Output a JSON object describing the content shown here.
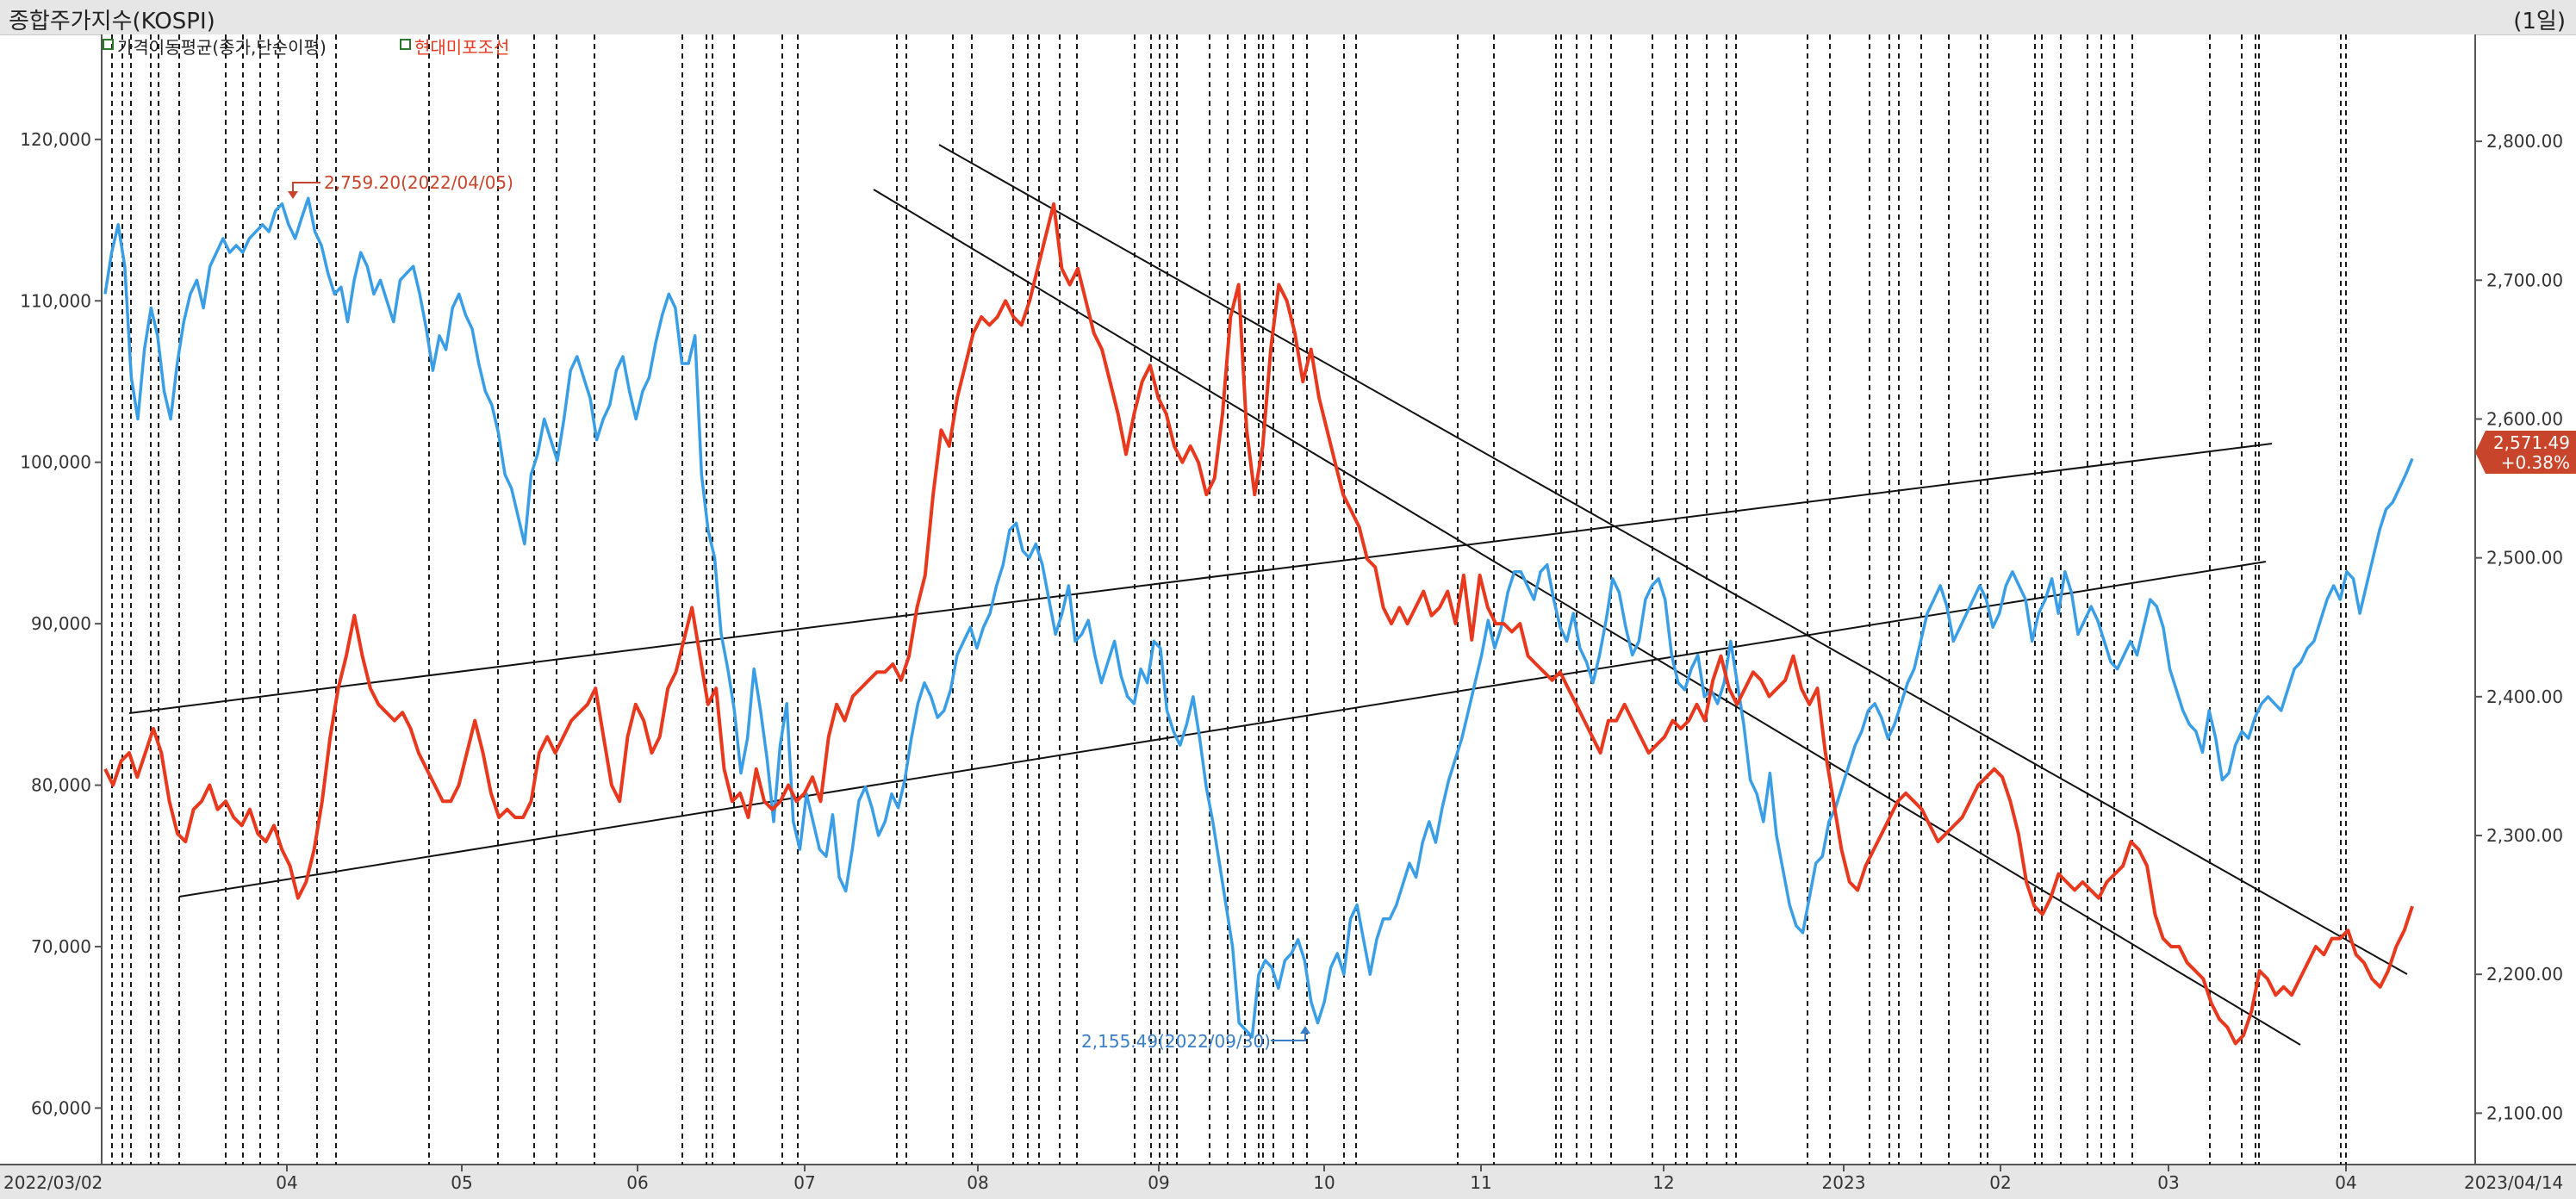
{
  "window": {
    "title": "종합주가지수(KOSPI)",
    "period": "(1일)"
  },
  "colors": {
    "primary": "#3a9ee6",
    "secondary": "#e8381e",
    "accent": "#c8442a",
    "grid": "#000000"
  },
  "chart_data": {
    "type": "line",
    "legend": [
      {
        "label": "가격이동평균(종가,단순이평)",
        "color": "#222222"
      },
      {
        "label": "현대미포조선",
        "color": "#e8381e"
      }
    ],
    "x_labels": [
      "2022/03/02",
      "04",
      "05",
      "06",
      "07",
      "08",
      "09",
      "10",
      "11",
      "12",
      "2023",
      "02",
      "03",
      "04",
      "2023/04/14"
    ],
    "left_axis": {
      "ticks": [
        "120,000",
        "110,000",
        "100,000",
        "90,000",
        "80,000",
        "70,000",
        "60,000"
      ],
      "range": [
        56500,
        126500
      ]
    },
    "right_axis": {
      "ticks": [
        "2,800.00",
        "2,700.00",
        "2,600.00",
        "2,500.00",
        "2,400.00",
        "2,300.00",
        "2,200.00",
        "2,100.00"
      ],
      "range": [
        2063,
        2877
      ]
    },
    "current": {
      "value": "2,571.49",
      "change": "+0.38%"
    },
    "annotations": {
      "high": "2,759.20(2022/04/05)",
      "low": "2,155.49(2022/09/30)"
    },
    "series": [
      {
        "name": "종합주가지수(KOSPI)",
        "axis": "right",
        "values": [
          2690,
          2720,
          2740,
          2710,
          2630,
          2600,
          2650,
          2680,
          2660,
          2620,
          2600,
          2640,
          2670,
          2690,
          2700,
          2680,
          2710,
          2720,
          2730,
          2720,
          2725,
          2720,
          2730,
          2735,
          2740,
          2735,
          2750,
          2755,
          2740,
          2730,
          2745,
          2759,
          2735,
          2725,
          2705,
          2690,
          2695,
          2670,
          2700,
          2720,
          2710,
          2690,
          2700,
          2685,
          2670,
          2700,
          2705,
          2710,
          2690,
          2665,
          2635,
          2660,
          2650,
          2680,
          2690,
          2675,
          2665,
          2640,
          2620,
          2610,
          2590,
          2560,
          2550,
          2530,
          2510,
          2560,
          2575,
          2600,
          2585,
          2570,
          2600,
          2635,
          2645,
          2630,
          2615,
          2585,
          2600,
          2610,
          2635,
          2645,
          2620,
          2600,
          2620,
          2630,
          2655,
          2675,
          2690,
          2680,
          2640,
          2640,
          2660,
          2560,
          2520,
          2500,
          2445,
          2420,
          2390,
          2345,
          2370,
          2420,
          2390,
          2355,
          2310,
          2365,
          2395,
          2310,
          2290,
          2330,
          2310,
          2290,
          2285,
          2315,
          2270,
          2260,
          2290,
          2325,
          2335,
          2320,
          2300,
          2310,
          2330,
          2320,
          2340,
          2370,
          2395,
          2410,
          2400,
          2385,
          2390,
          2405,
          2430,
          2440,
          2450,
          2435,
          2450,
          2460,
          2480,
          2495,
          2520,
          2525,
          2505,
          2500,
          2510,
          2495,
          2470,
          2445,
          2460,
          2480,
          2440,
          2445,
          2455,
          2430,
          2410,
          2425,
          2440,
          2415,
          2400,
          2395,
          2420,
          2410,
          2440,
          2435,
          2390,
          2375,
          2365,
          2380,
          2400,
          2370,
          2335,
          2310,
          2280,
          2250,
          2220,
          2165,
          2160,
          2155,
          2200,
          2210,
          2205,
          2190,
          2210,
          2215,
          2225,
          2210,
          2180,
          2165,
          2180,
          2205,
          2215,
          2200,
          2240,
          2250,
          2225,
          2200,
          2225,
          2240,
          2240,
          2250,
          2265,
          2280,
          2270,
          2295,
          2310,
          2295,
          2320,
          2340,
          2355,
          2370,
          2390,
          2410,
          2430,
          2455,
          2435,
          2450,
          2475,
          2490,
          2490,
          2480,
          2470,
          2490,
          2495,
          2470,
          2450,
          2440,
          2460,
          2435,
          2425,
          2410,
          2430,
          2455,
          2485,
          2475,
          2450,
          2430,
          2440,
          2470,
          2480,
          2485,
          2470,
          2430,
          2410,
          2405,
          2420,
          2430,
          2400,
          2405,
          2395,
          2410,
          2440,
          2410,
          2380,
          2340,
          2330,
          2310,
          2345,
          2300,
          2275,
          2250,
          2235,
          2230,
          2255,
          2280,
          2285,
          2310,
          2320,
          2335,
          2350,
          2365,
          2375,
          2390,
          2395,
          2385,
          2370,
          2380,
          2395,
          2410,
          2420,
          2440,
          2460,
          2470,
          2480,
          2465,
          2440,
          2450,
          2460,
          2470,
          2480,
          2470,
          2450,
          2460,
          2480,
          2490,
          2480,
          2470,
          2440,
          2460,
          2470,
          2485,
          2460,
          2490,
          2475,
          2445,
          2455,
          2465,
          2455,
          2440,
          2425,
          2420,
          2430,
          2440,
          2430,
          2450,
          2470,
          2465,
          2450,
          2420,
          2405,
          2390,
          2380,
          2375,
          2360,
          2390,
          2370,
          2340,
          2345,
          2365,
          2375,
          2370,
          2385,
          2395,
          2400,
          2395,
          2390,
          2405,
          2420,
          2425,
          2435,
          2440,
          2455,
          2470,
          2480,
          2470,
          2490,
          2485,
          2460,
          2480,
          2500,
          2520,
          2535,
          2540,
          2550,
          2560,
          2571.49
        ]
      },
      {
        "name": "현대미포조선",
        "axis": "left",
        "values": [
          81000,
          80000,
          81500,
          82000,
          80500,
          82000,
          83500,
          82000,
          79000,
          77000,
          76500,
          78500,
          79000,
          80000,
          78500,
          79000,
          78000,
          77500,
          78500,
          77000,
          76500,
          77500,
          76000,
          75000,
          73000,
          74000,
          76000,
          79000,
          83000,
          86000,
          88000,
          90500,
          88000,
          86000,
          85000,
          84500,
          84000,
          84500,
          83500,
          82000,
          81000,
          80000,
          79000,
          79000,
          80000,
          82000,
          84000,
          82000,
          79500,
          78000,
          78500,
          78000,
          78000,
          79000,
          82000,
          83000,
          82000,
          83000,
          84000,
          84500,
          85000,
          86000,
          83000,
          80000,
          79000,
          83000,
          85000,
          84000,
          82000,
          83000,
          86000,
          87000,
          89000,
          91000,
          88000,
          85000,
          86000,
          81000,
          79000,
          79500,
          78000,
          81000,
          79000,
          78500,
          79000,
          80000,
          79000,
          79500,
          80500,
          79000,
          83000,
          85000,
          84000,
          85500,
          86000,
          86500,
          87000,
          87000,
          87500,
          86500,
          88000,
          91000,
          93000,
          98000,
          102000,
          101000,
          104000,
          106000,
          108000,
          109000,
          108500,
          109000,
          110000,
          109000,
          108500,
          110000,
          112000,
          114000,
          116000,
          112000,
          111000,
          112000,
          110000,
          108000,
          107000,
          105000,
          103000,
          100500,
          103000,
          105000,
          106000,
          104000,
          103000,
          101000,
          100000,
          101000,
          100000,
          98000,
          99000,
          103000,
          109000,
          111000,
          102000,
          98000,
          101000,
          107000,
          111000,
          110000,
          108000,
          105000,
          107000,
          104000,
          102000,
          100000,
          98000,
          97000,
          96000,
          94000,
          93500,
          91000,
          90000,
          91000,
          90000,
          91000,
          92000,
          90500,
          91000,
          92000,
          90000,
          93000,
          89000,
          93000,
          91000,
          90000,
          90000,
          89500,
          90000,
          88000,
          87500,
          87000,
          86500,
          87000,
          86000,
          85000,
          84000,
          83000,
          82000,
          84000,
          84000,
          85000,
          84000,
          83000,
          82000,
          82500,
          83000,
          84000,
          83500,
          84000,
          85000,
          84000,
          86500,
          88000,
          86000,
          85000,
          86000,
          87000,
          86500,
          85500,
          86000,
          86500,
          88000,
          86000,
          85000,
          86000,
          82000,
          79000,
          76000,
          74000,
          73500,
          75000,
          76000,
          77000,
          78000,
          79000,
          79500,
          79000,
          78500,
          77500,
          76500,
          77000,
          77500,
          78000,
          79000,
          80000,
          80500,
          81000,
          80500,
          79000,
          77000,
          74000,
          72500,
          72000,
          73000,
          74500,
          74000,
          73500,
          74000,
          73500,
          73000,
          74000,
          74500,
          75000,
          76500,
          76000,
          75000,
          72000,
          70500,
          70000,
          70000,
          69000,
          68500,
          68000,
          66500,
          65500,
          65000,
          64000,
          64500,
          66000,
          68500,
          68000,
          67000,
          67500,
          67000,
          68000,
          69000,
          70000,
          69500,
          70500,
          70500,
          71000,
          69500,
          69000,
          68000,
          67500,
          68500,
          70000,
          71000,
          72500
        ]
      }
    ]
  }
}
